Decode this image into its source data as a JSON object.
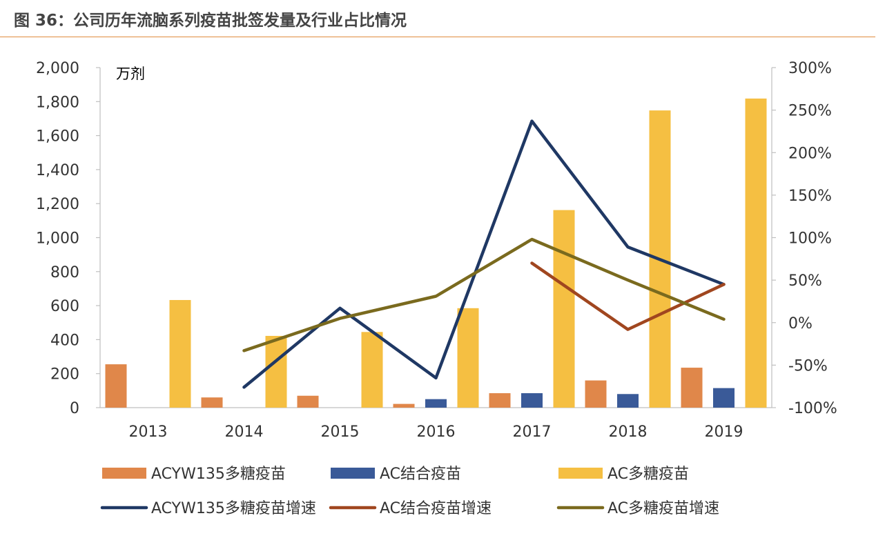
{
  "figure": {
    "title": "图 36：公司历年流脑系列疫苗批签发量及行业占比情况",
    "accent_color": "#E08A3C"
  },
  "chart_data": {
    "type": "bar",
    "categories": [
      "2013",
      "2014",
      "2015",
      "2016",
      "2017",
      "2018",
      "2019"
    ],
    "y_unit_label": "万剂",
    "ylim": [
      0,
      2000
    ],
    "y_ticks": [
      0,
      200,
      400,
      600,
      800,
      1000,
      1200,
      1400,
      1600,
      1800,
      2000
    ],
    "y_tick_labels": [
      "0",
      "200",
      "400",
      "600",
      "800",
      "1,000",
      "1,200",
      "1,400",
      "1,600",
      "1,800",
      "2,000"
    ],
    "y2lim": [
      -100,
      300
    ],
    "y2_ticks": [
      -100,
      -50,
      0,
      50,
      100,
      150,
      200,
      250,
      300
    ],
    "y2_tick_labels": [
      "-100%",
      "-50%",
      "0%",
      "50%",
      "100%",
      "150%",
      "200%",
      "250%",
      "300%"
    ],
    "grid": false,
    "legend_position": "bottom",
    "bar_series": [
      {
        "name": "ACYW135多糖疫苗",
        "color": "#E0874A",
        "values": [
          255,
          60,
          70,
          22,
          85,
          160,
          235
        ]
      },
      {
        "name": "AC结合疫苗",
        "color": "#3A5A98",
        "values": [
          null,
          null,
          null,
          50,
          85,
          80,
          115
        ]
      },
      {
        "name": "AC多糖疫苗",
        "color": "#F5BF42",
        "values": [
          633,
          422,
          445,
          585,
          1162,
          1748,
          1818
        ]
      }
    ],
    "line_series": [
      {
        "name": "ACYW135多糖疫苗增速",
        "color": "#1F3864",
        "axis": "right",
        "values": [
          null,
          -76,
          17,
          -65,
          237,
          89,
          45
        ]
      },
      {
        "name": "AC结合疫苗增速",
        "color": "#A0461F",
        "axis": "right",
        "values": [
          null,
          null,
          null,
          null,
          70,
          -8,
          45
        ]
      },
      {
        "name": "AC多糖疫苗增速",
        "color": "#7A6A1E",
        "axis": "right",
        "values": [
          null,
          -33,
          5,
          31,
          98,
          50,
          4
        ]
      }
    ]
  }
}
